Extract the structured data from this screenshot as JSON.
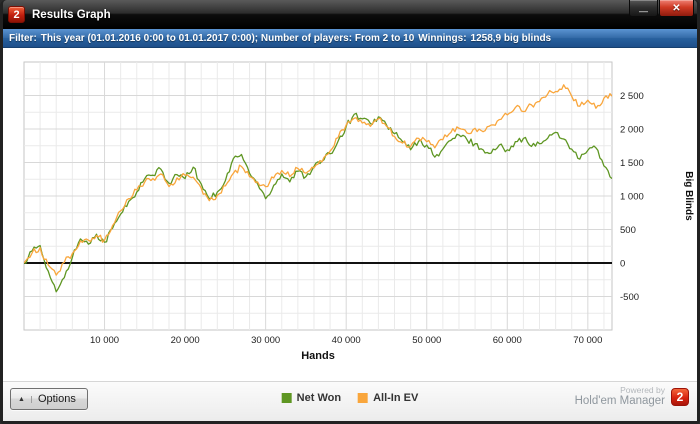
{
  "window": {
    "title": "Results Graph",
    "logo_text": "2",
    "minimize_glyph": "—",
    "close_glyph": "✕"
  },
  "filter_bar": {
    "label": "Filter:",
    "text": "This year (01.01.2016 0:00 to 01.01.2017 0:00); Number of players: From 2 to 10",
    "winnings_label": "Winnings:",
    "winnings_value": "1258,9 big blinds"
  },
  "chart_data": {
    "type": "line",
    "title": "",
    "xlabel": "Hands",
    "ylabel": "Big Blinds",
    "xlim": [
      0,
      73000
    ],
    "ylim": [
      -1000,
      3000
    ],
    "grid": true,
    "legend_position": "bottom",
    "x_tick_values": [
      10000,
      20000,
      30000,
      40000,
      50000,
      60000,
      70000
    ],
    "x_tick_labels": [
      "10 000",
      "20 000",
      "30 000",
      "40 000",
      "50 000",
      "60 000",
      "70 000"
    ],
    "y_tick_values": [
      -500,
      0,
      500,
      1000,
      1500,
      2000,
      2500
    ],
    "y_tick_labels": [
      "-500",
      "0",
      "500",
      "1 000",
      "1 500",
      "2 000",
      "2 500"
    ],
    "x_minor_step": 2000,
    "y_minor_step": 250,
    "x_start": 0,
    "x_step": 1000,
    "series": [
      {
        "name": "Net Won",
        "color": "#5e9622",
        "values": [
          0,
          180,
          260,
          -120,
          -430,
          -220,
          80,
          360,
          280,
          430,
          310,
          520,
          730,
          920,
          1060,
          1260,
          1310,
          1400,
          1190,
          1320,
          1260,
          1430,
          1180,
          960,
          1060,
          1230,
          1560,
          1620,
          1340,
          1180,
          960,
          1160,
          1330,
          1210,
          1370,
          1290,
          1440,
          1520,
          1630,
          1820,
          2040,
          2220,
          2150,
          2080,
          2180,
          2060,
          1930,
          1810,
          1690,
          1820,
          1760,
          1580,
          1700,
          1830,
          1910,
          1840,
          1780,
          1690,
          1640,
          1760,
          1690,
          1810,
          1860,
          1740,
          1780,
          1860,
          1950,
          1850,
          1700,
          1550,
          1680,
          1720,
          1450,
          1259
        ]
      },
      {
        "name": "All-In EV",
        "color": "#f9a63c",
        "values": [
          0,
          150,
          230,
          -30,
          -180,
          10,
          140,
          330,
          340,
          410,
          340,
          560,
          780,
          960,
          1090,
          1210,
          1260,
          1330,
          1140,
          1270,
          1310,
          1280,
          1120,
          930,
          1010,
          1150,
          1340,
          1440,
          1290,
          1210,
          1140,
          1270,
          1380,
          1290,
          1410,
          1340,
          1420,
          1510,
          1670,
          1870,
          2060,
          2160,
          2090,
          2040,
          2150,
          2040,
          1890,
          1790,
          1740,
          1860,
          1810,
          1720,
          1840,
          1950,
          2010,
          1940,
          2010,
          1960,
          2060,
          2140,
          2210,
          2320,
          2260,
          2360,
          2410,
          2520,
          2560,
          2660,
          2490,
          2340,
          2430,
          2310,
          2460,
          2490
        ]
      }
    ]
  },
  "footer": {
    "options_arrow": "▲",
    "options_label": "Options",
    "powered_by": "Powered by",
    "brand": "Hold'em Manager",
    "brand_logo": "2"
  }
}
